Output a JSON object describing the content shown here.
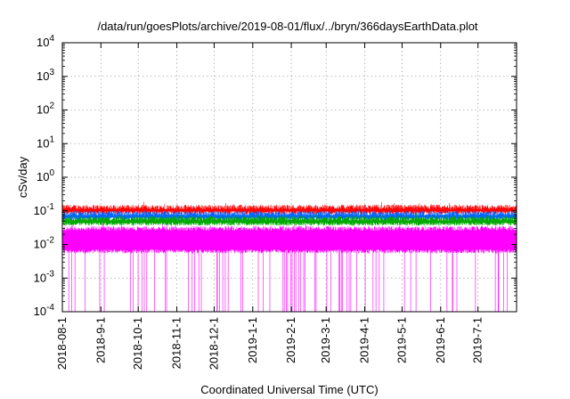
{
  "chart_data": {
    "type": "line",
    "title": "/data/run/goesPlots/archive/2019-08-01/flux/../bryn/366daysEarthData.plot",
    "xlabel": "Coordinated Universal Time (UTC)",
    "ylabel": "cSv/day",
    "yscale": "log",
    "ylim": [
      0.0001,
      10000
    ],
    "xlim": [
      "2018-08-01",
      "2019-08-01"
    ],
    "grid": true,
    "x_tick_labels": [
      "2018-08-1",
      "2018-9-1",
      "2018-10-1",
      "2018-11-1",
      "2018-12-1",
      "2019-1-1",
      "2019-2-1",
      "2019-3-1",
      "2019-4-1",
      "2019-5-1",
      "2019-6-1",
      "2019-7-1"
    ],
    "x_tick_dates": [
      "2018-08-01",
      "2018-09-01",
      "2018-10-01",
      "2018-11-01",
      "2018-12-01",
      "2019-01-01",
      "2019-02-01",
      "2019-03-01",
      "2019-04-01",
      "2019-05-01",
      "2019-06-01",
      "2019-07-01"
    ],
    "y_tick_labels": [
      {
        "base": "10",
        "exp": "-4",
        "value": 0.0001
      },
      {
        "base": "10",
        "exp": "-3",
        "value": 0.001
      },
      {
        "base": "10",
        "exp": "-2",
        "value": 0.01
      },
      {
        "base": "10",
        "exp": "-1",
        "value": 0.1
      },
      {
        "base": "10",
        "exp": "0",
        "value": 1
      },
      {
        "base": "10",
        "exp": "1",
        "value": 10
      },
      {
        "base": "10",
        "exp": "2",
        "value": 100
      },
      {
        "base": "10",
        "exp": "3",
        "value": 1000
      },
      {
        "base": "10",
        "exp": "4",
        "value": 10000
      }
    ],
    "series": [
      {
        "color": "#ff0000",
        "typical_value": 0.13
      },
      {
        "color": "#0066ff",
        "typical_value": 0.085
      },
      {
        "color": "#00aa00",
        "typical_value": 0.06
      },
      {
        "color": "#ff00ff",
        "typical_value": 0.03,
        "min_value": 0.006
      }
    ]
  }
}
